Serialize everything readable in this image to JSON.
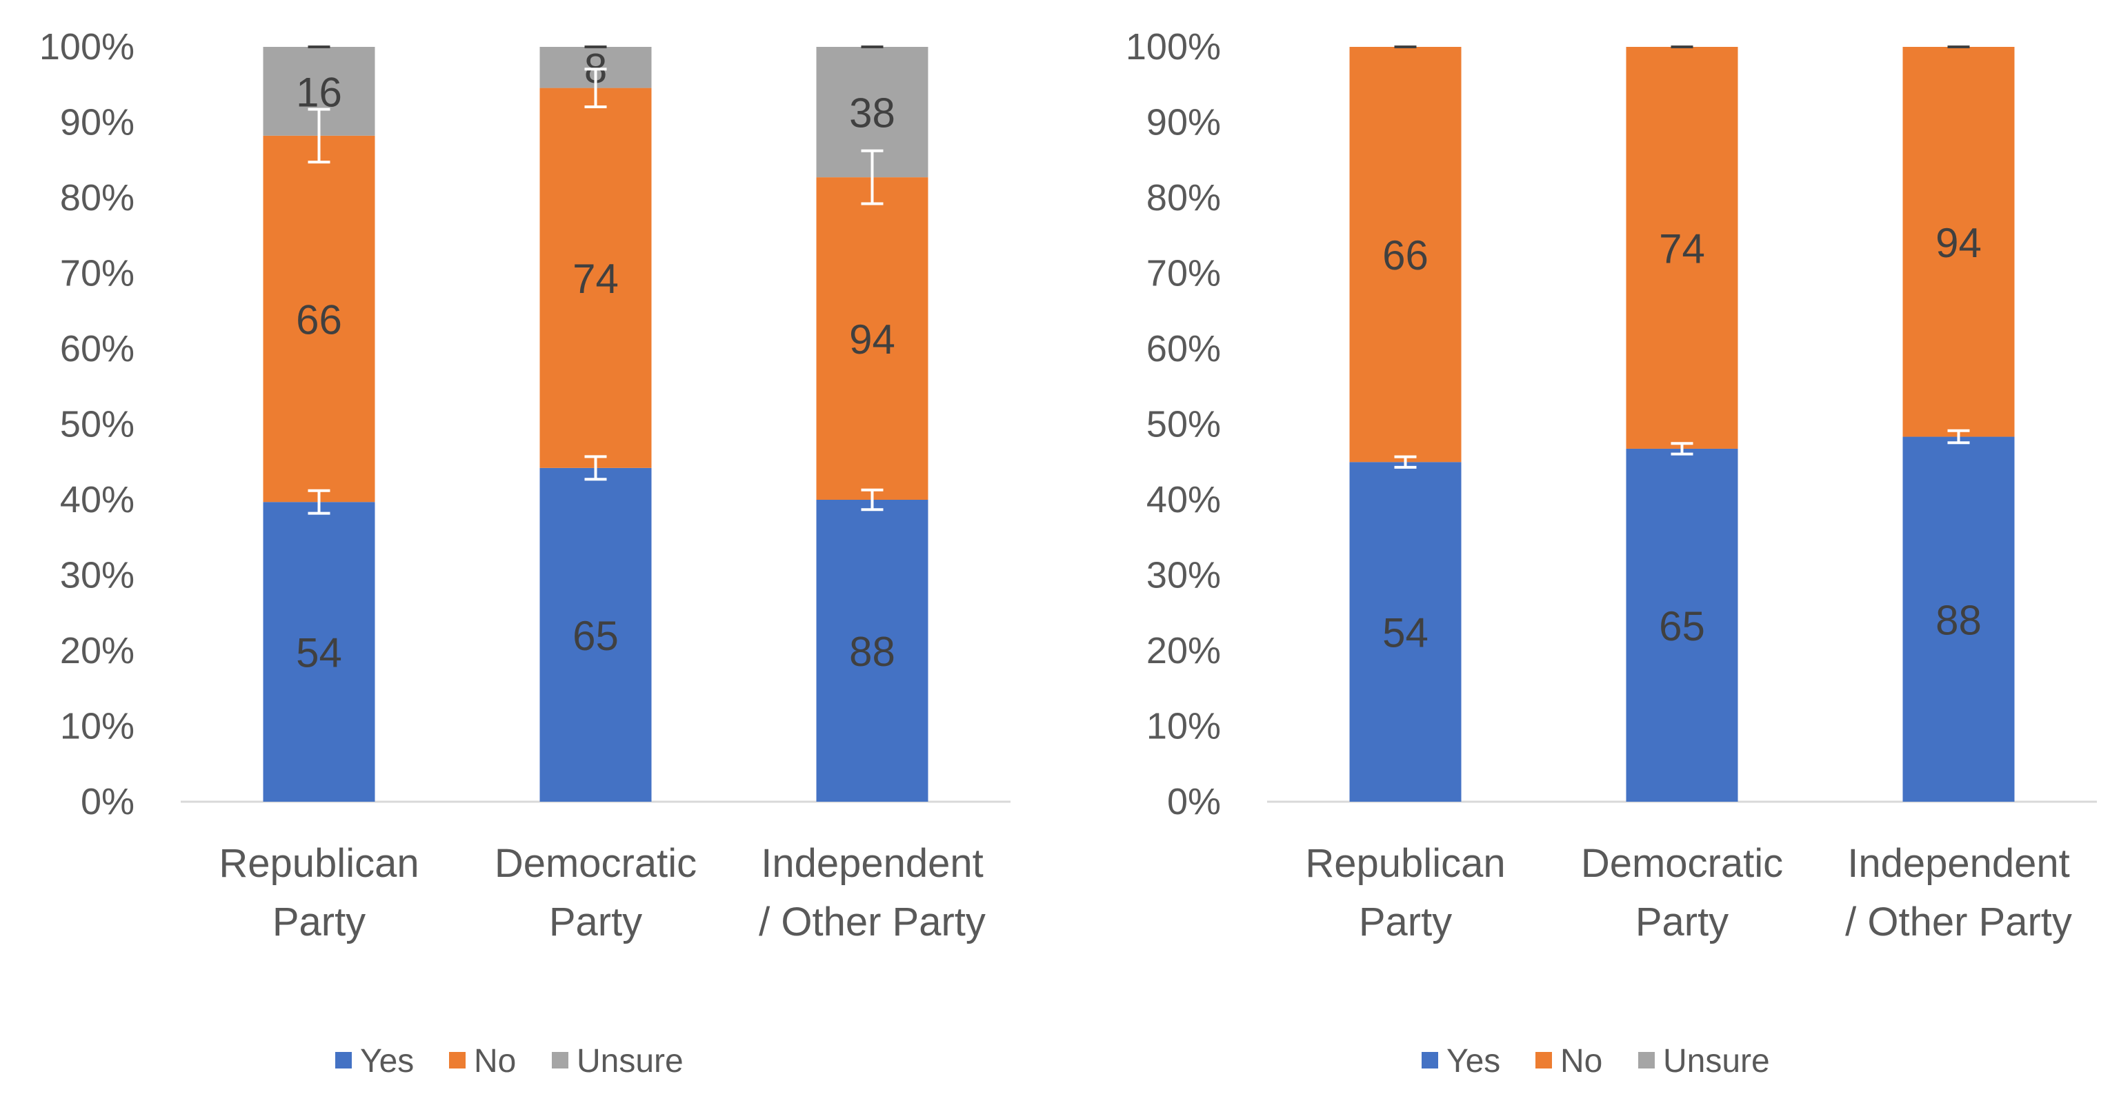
{
  "colors": {
    "yes": "#4472C4",
    "no": "#ED7D31",
    "unsure": "#A5A5A5",
    "axis": "#D9D9D9",
    "text": "#595959",
    "label": "#404040",
    "errorbar": "#ffffff"
  },
  "legend": {
    "yes": "Yes",
    "no": "No",
    "unsure": "Unsure"
  },
  "chart_data": [
    {
      "type": "bar",
      "stacked": "percent",
      "title": "",
      "xlabel": "",
      "ylabel": "",
      "ylim": [
        0,
        100
      ],
      "yticks": [
        "0%",
        "10%",
        "20%",
        "30%",
        "40%",
        "50%",
        "60%",
        "70%",
        "80%",
        "90%",
        "100%"
      ],
      "categories": [
        [
          "Republican",
          "Party"
        ],
        [
          "Democratic",
          "Party"
        ],
        [
          "Independent",
          "/ Other Party"
        ]
      ],
      "series": [
        {
          "name": "Yes",
          "key": "yes",
          "values": [
            54,
            65,
            88
          ],
          "labels": [
            "54",
            "65",
            "88"
          ],
          "error_pct": [
            1.5,
            1.5,
            1.3
          ]
        },
        {
          "name": "No",
          "key": "no",
          "values": [
            66,
            74,
            94
          ],
          "labels": [
            "66",
            "74",
            "94"
          ],
          "error_pct": [
            3.5,
            2.5,
            3.5
          ]
        },
        {
          "name": "Unsure",
          "key": "unsure",
          "values": [
            16,
            8,
            38
          ],
          "labels": [
            "16",
            "8",
            "38"
          ],
          "error_pct": [
            0,
            0,
            0
          ]
        }
      ],
      "legend_position": "bottom"
    },
    {
      "type": "bar",
      "stacked": "percent",
      "title": "",
      "xlabel": "",
      "ylabel": "",
      "ylim": [
        0,
        100
      ],
      "yticks": [
        "0%",
        "10%",
        "20%",
        "30%",
        "40%",
        "50%",
        "60%",
        "70%",
        "80%",
        "90%",
        "100%"
      ],
      "categories": [
        [
          "Republican",
          "Party"
        ],
        [
          "Democratic",
          "Party"
        ],
        [
          "Independent",
          "/ Other Party"
        ]
      ],
      "series": [
        {
          "name": "Yes",
          "key": "yes",
          "values": [
            54,
            65,
            88
          ],
          "labels": [
            "54",
            "65",
            "88"
          ],
          "error_pct": [
            0.7,
            0.7,
            0.8
          ]
        },
        {
          "name": "No",
          "key": "no",
          "values": [
            66,
            74,
            94
          ],
          "labels": [
            "66",
            "74",
            "94"
          ],
          "error_pct": [
            0,
            0,
            0
          ]
        },
        {
          "name": "Unsure",
          "key": "unsure",
          "values": [
            0,
            0,
            0
          ],
          "labels": [
            "",
            "",
            ""
          ],
          "error_pct": [
            0,
            0,
            0
          ]
        }
      ],
      "legend_position": "bottom"
    }
  ]
}
